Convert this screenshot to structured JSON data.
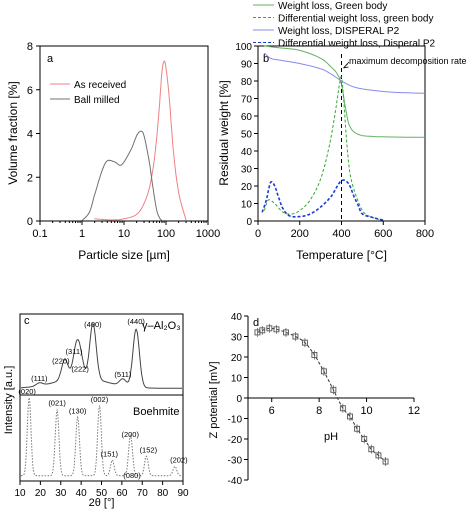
{
  "chart_data": [
    {
      "panel": "a",
      "type": "line",
      "xscale": "log",
      "xlabel": "Particle size [µm]",
      "ylabel": "Volume fraction [%]",
      "xlim": [
        0.1,
        1000
      ],
      "ylim": [
        0,
        8
      ],
      "xticks": [
        "0.1",
        "1",
        "10",
        "100",
        "1000"
      ],
      "yticks": [
        "0",
        "2",
        "4",
        "6",
        "8"
      ],
      "legend": "upper-left",
      "series": [
        {
          "name": "As received",
          "color": "#f08080",
          "x": [
            2,
            5,
            10,
            20,
            30,
            40,
            50,
            60,
            70,
            80,
            90,
            100,
            120,
            150,
            200,
            300
          ],
          "y": [
            0.1,
            0.05,
            0.1,
            0.3,
            0.8,
            1.5,
            2.5,
            3.8,
            5.3,
            6.8,
            7.3,
            7.0,
            5.6,
            3.2,
            1.3,
            0.05
          ]
        },
        {
          "name": "Ball milled",
          "color": "#707070",
          "x": [
            1,
            1.5,
            2,
            3,
            4,
            6,
            8,
            10,
            15,
            20,
            25,
            30,
            40,
            50,
            60,
            70,
            80
          ],
          "y": [
            0.02,
            0.4,
            1.2,
            2.3,
            2.75,
            2.7,
            2.55,
            2.7,
            3.3,
            3.9,
            4.1,
            3.9,
            2.7,
            1.4,
            0.5,
            0.15,
            0.02
          ]
        }
      ]
    },
    {
      "panel": "b",
      "type": "line",
      "xlabel": "Temperature [°C]",
      "ylabel": "Residual weight [%]",
      "xlim": [
        0,
        800
      ],
      "ylim": [
        0,
        100
      ],
      "xticks": [
        "0",
        "200",
        "400",
        "600",
        "800"
      ],
      "yticks": [
        "0",
        "10",
        "20",
        "30",
        "40",
        "50",
        "60",
        "70",
        "80",
        "90",
        "100"
      ],
      "annotation": "maximum decomposition rate",
      "annotation_x": 400,
      "legend": "above",
      "series": [
        {
          "name": "Weight loss, Green body",
          "color": "#66b066",
          "style": "solid",
          "x": [
            30,
            100,
            200,
            300,
            350,
            380,
            400,
            420,
            440,
            480,
            550,
            650,
            800
          ],
          "y": [
            100,
            99,
            97.5,
            93,
            88,
            84,
            78,
            64,
            54,
            49.5,
            48.3,
            48,
            47.8
          ]
        },
        {
          "name": "Differential weight loss, green body",
          "color": "#33aa33",
          "style": "dashed",
          "x": [
            30,
            50,
            80,
            120,
            160,
            200,
            250,
            300,
            340,
            370,
            390,
            400,
            410,
            430,
            450,
            500,
            550,
            600
          ],
          "y": [
            6,
            12,
            10,
            5,
            4,
            6,
            12,
            24,
            42,
            62,
            78,
            82,
            70,
            38,
            22,
            6,
            2,
            0.5
          ]
        },
        {
          "name": "Weight loss, DISPERAL P2",
          "color": "#8888ee",
          "style": "solid",
          "x": [
            30,
            60,
            100,
            200,
            300,
            350,
            400,
            450,
            500,
            600,
            700,
            800
          ],
          "y": [
            96,
            93,
            92,
            90,
            87,
            84,
            80,
            77,
            75.5,
            74,
            73.3,
            73
          ]
        },
        {
          "name": "Differential weight loss, Disperal P2",
          "color": "#1a3ad8",
          "style": "dashed",
          "x": [
            20,
            40,
            60,
            80,
            100,
            120,
            150,
            200,
            250,
            300,
            350,
            380,
            400,
            420,
            440,
            460,
            480,
            500,
            550,
            600
          ],
          "y": [
            5,
            12,
            22,
            20,
            13,
            7,
            3,
            2.5,
            4,
            8,
            14,
            20,
            23,
            23,
            20,
            14,
            9,
            4,
            2,
            0.5
          ]
        }
      ]
    },
    {
      "panel": "c",
      "type": "line",
      "xlabel": "2θ [°]",
      "ylabel": "Intensity [a.u.]",
      "xlim": [
        10,
        90
      ],
      "xticks": [
        "10",
        "20",
        "30",
        "40",
        "50",
        "60",
        "70",
        "80",
        "90"
      ],
      "phase_labels": [
        "γ–Al₂O₃",
        "Boehmite"
      ],
      "series": [
        {
          "name": "γ–Al₂O₃",
          "color": "#444444",
          "style": "solid",
          "peaks": [
            {
              "pos": 19.5,
              "label": "(111)",
              "h": 0.05
            },
            {
              "pos": 32,
              "label": "(220)",
              "h": 0.35
            },
            {
              "pos": 37.5,
              "label": "(311)",
              "h": 0.45
            },
            {
              "pos": 39.5,
              "label": "(222)",
              "h": 0.35
            },
            {
              "pos": 45.8,
              "label": "(400)",
              "h": 0.95
            },
            {
              "pos": 60.5,
              "label": "(511)",
              "h": 0.12
            },
            {
              "pos": 67,
              "label": "(440)",
              "h": 1.0
            }
          ]
        },
        {
          "name": "Boehmite",
          "color": "#777777",
          "style": "dotted",
          "peaks": [
            {
              "pos": 14.5,
              "label": "(020)",
              "h": 1.0
            },
            {
              "pos": 28.2,
              "label": "(021)",
              "h": 0.85
            },
            {
              "pos": 38.3,
              "label": "(130)",
              "h": 0.75
            },
            {
              "pos": 49,
              "label": "(002)",
              "h": 0.9
            },
            {
              "pos": 55.3,
              "label": "(151)",
              "h": 0.2
            },
            {
              "pos": 64.1,
              "label": "(200)",
              "h": 0.45
            },
            {
              "pos": 65,
              "label": "(080)",
              "h": 0.1
            },
            {
              "pos": 72,
              "label": "(152)",
              "h": 0.25
            },
            {
              "pos": 86,
              "label": "(202)",
              "h": 0.12
            }
          ]
        }
      ]
    },
    {
      "panel": "d",
      "type": "scatter",
      "xlabel": "pH",
      "ylabel": "Z potential [mV]",
      "xlim": [
        5,
        12
      ],
      "ylim": [
        -40,
        40
      ],
      "xticks": [
        "6",
        "8",
        "10",
        "12"
      ],
      "yticks": [
        "-40",
        "-30",
        "-20",
        "-10",
        "0",
        "10",
        "20",
        "30",
        "40"
      ],
      "series": [
        {
          "name": "",
          "marker": "square",
          "color": "#555555",
          "x": [
            5.4,
            5.6,
            5.9,
            6.2,
            6.6,
            7.0,
            7.4,
            7.8,
            8.2,
            8.6,
            9.0,
            9.3,
            9.6,
            9.9,
            10.2,
            10.5,
            10.8
          ],
          "y": [
            32,
            33,
            34,
            33.5,
            32,
            30,
            27,
            21,
            13,
            4,
            -5,
            -9,
            -15,
            -20,
            -25,
            -28,
            -31
          ]
        }
      ]
    }
  ]
}
